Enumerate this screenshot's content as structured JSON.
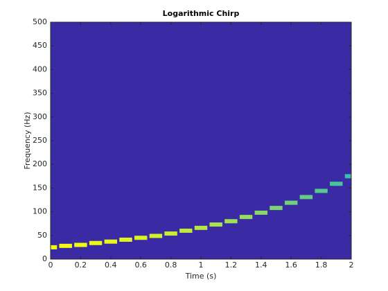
{
  "chart_data": {
    "type": "spectrogram",
    "title": "Logarithmic Chirp",
    "x_label": "Time (s)",
    "y_label": "Frequency (Hz)",
    "x": [
      0,
      0.1,
      0.2,
      0.3,
      0.4,
      0.5,
      0.6,
      0.7,
      0.8,
      0.9,
      1.0,
      1.1,
      1.2,
      1.3,
      1.4,
      1.5,
      1.6,
      1.7,
      1.8,
      1.9,
      2.0
    ],
    "values": [
      25,
      28,
      30,
      34,
      37,
      41,
      45,
      49,
      54,
      60,
      66,
      73,
      80,
      89,
      98,
      108,
      119,
      131,
      144,
      159,
      175
    ],
    "colors": [
      "#f9fb0e",
      "#3cbfa8"
    ],
    "background_color": "#3a2aa3",
    "xlim": [
      0,
      2
    ],
    "xticks": [
      0,
      0.2,
      0.4,
      0.6,
      0.8,
      1,
      1.2,
      1.4,
      1.6,
      1.8,
      2
    ],
    "ylim": [
      0,
      500
    ],
    "yticks": [
      0,
      50,
      100,
      150,
      200,
      250,
      300,
      350,
      400,
      450,
      500
    ]
  }
}
